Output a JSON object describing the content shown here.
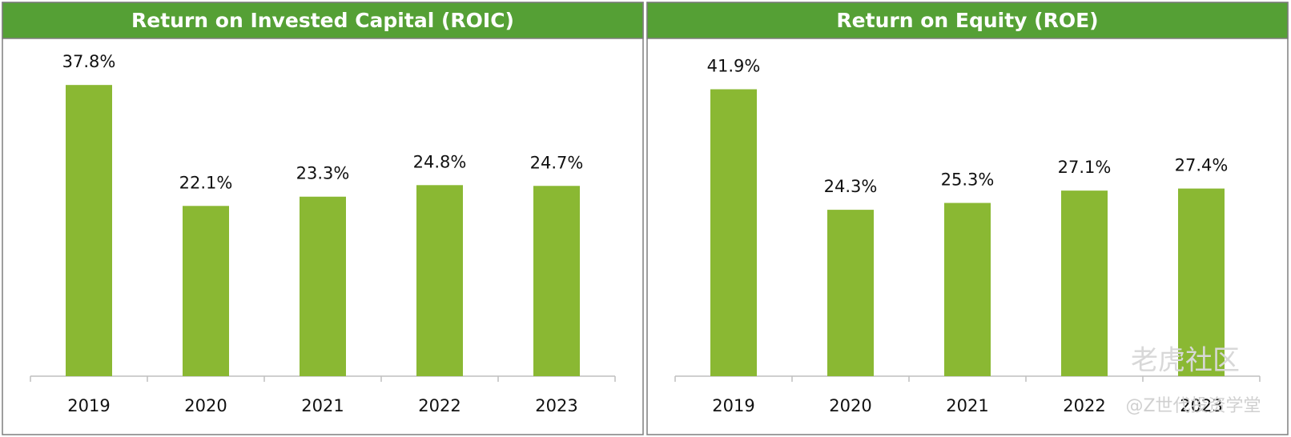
{
  "chart_data": [
    {
      "type": "bar",
      "title": "Return on Invested Capital (ROIC)",
      "categories": [
        "2019",
        "2020",
        "2021",
        "2022",
        "2023"
      ],
      "values": [
        37.8,
        22.1,
        23.3,
        24.8,
        24.7
      ],
      "value_labels": [
        "37.8%",
        "22.1%",
        "23.3%",
        "24.8%",
        "24.7%"
      ],
      "color": "#8ab833",
      "ylim": [
        0,
        40
      ]
    },
    {
      "type": "bar",
      "title": "Return on Equity (ROE)",
      "categories": [
        "2019",
        "2020",
        "2021",
        "2022",
        "2023"
      ],
      "values": [
        41.9,
        24.3,
        25.3,
        27.1,
        27.4
      ],
      "value_labels": [
        "41.9%",
        "24.3%",
        "25.3%",
        "27.1%",
        "27.4%"
      ],
      "color": "#8ab833",
      "ylim": [
        0,
        45
      ]
    }
  ],
  "watermark": [
    "老虎社区",
    "@Z世代投资学堂"
  ]
}
